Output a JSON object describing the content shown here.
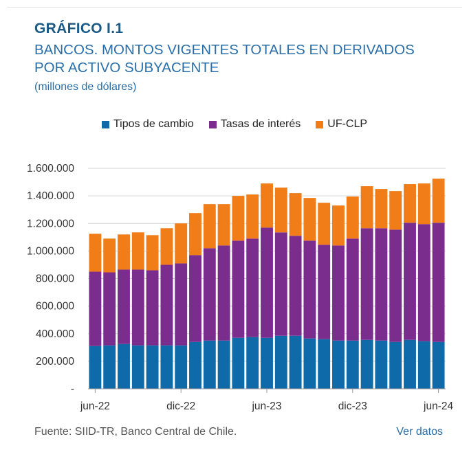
{
  "figure_label": "GRÁFICO I.1",
  "title": "BANCOS. MONTOS VIGENTES TOTALES EN DERIVADOS POR ACTIVO SUBYACENTE",
  "unit": "(millones de dólares)",
  "source": "Fuente: SIID-TR, Banco Central de Chile.",
  "see_data_link": "Ver datos",
  "colors": {
    "fx": "#0e6aa8",
    "rates": "#7b2d8e",
    "ufclp": "#f07d18",
    "grid": "#d6d6d6",
    "axis": "#999999"
  },
  "chart_data": {
    "type": "bar",
    "stacked": true,
    "title": "",
    "xlabel": "",
    "ylabel": "",
    "ylim": [
      0,
      1600000
    ],
    "yticks": [
      0,
      200000,
      400000,
      600000,
      800000,
      1000000,
      1200000,
      1400000,
      1600000
    ],
    "ytick_labels": [
      "-",
      "200.000",
      "400.000",
      "600.000",
      "800.000",
      "1.000.000",
      "1.200.000",
      "1.400.000",
      "1.600.000"
    ],
    "categories": [
      "jun-22",
      "jul-22",
      "ago-22",
      "sep-22",
      "oct-22",
      "nov-22",
      "dic-22",
      "ene-23",
      "feb-23",
      "mar-23",
      "abr-23",
      "may-23",
      "jun-23",
      "jul-23",
      "ago-23",
      "sep-23",
      "oct-23",
      "nov-23",
      "dic-23",
      "ene-24",
      "feb-24",
      "mar-24",
      "abr-24",
      "may-24",
      "jun-24"
    ],
    "xtick_labels": [
      {
        "index": 0,
        "label": "jun-22"
      },
      {
        "index": 6,
        "label": "dic-22"
      },
      {
        "index": 12,
        "label": "jun-23"
      },
      {
        "index": 18,
        "label": "dic-23"
      },
      {
        "index": 24,
        "label": "jun-24"
      }
    ],
    "series": [
      {
        "name": "Tipos de cambio",
        "color_key": "fx",
        "values": [
          310000,
          315000,
          325000,
          315000,
          315000,
          315000,
          315000,
          340000,
          350000,
          350000,
          370000,
          375000,
          370000,
          385000,
          385000,
          365000,
          360000,
          350000,
          350000,
          355000,
          350000,
          340000,
          355000,
          345000,
          340000
        ]
      },
      {
        "name": "Tasas de interés",
        "color_key": "rates",
        "values": [
          540000,
          530000,
          540000,
          550000,
          545000,
          585000,
          595000,
          630000,
          670000,
          690000,
          705000,
          715000,
          800000,
          750000,
          725000,
          710000,
          685000,
          690000,
          740000,
          810000,
          815000,
          815000,
          850000,
          850000,
          865000
        ]
      },
      {
        "name": "UF-CLP",
        "color_key": "ufclp",
        "values": [
          275000,
          245000,
          255000,
          270000,
          255000,
          265000,
          290000,
          305000,
          320000,
          300000,
          325000,
          320000,
          320000,
          325000,
          310000,
          310000,
          305000,
          290000,
          305000,
          305000,
          285000,
          280000,
          280000,
          295000,
          320000
        ]
      }
    ],
    "legend_position": "top-center"
  }
}
